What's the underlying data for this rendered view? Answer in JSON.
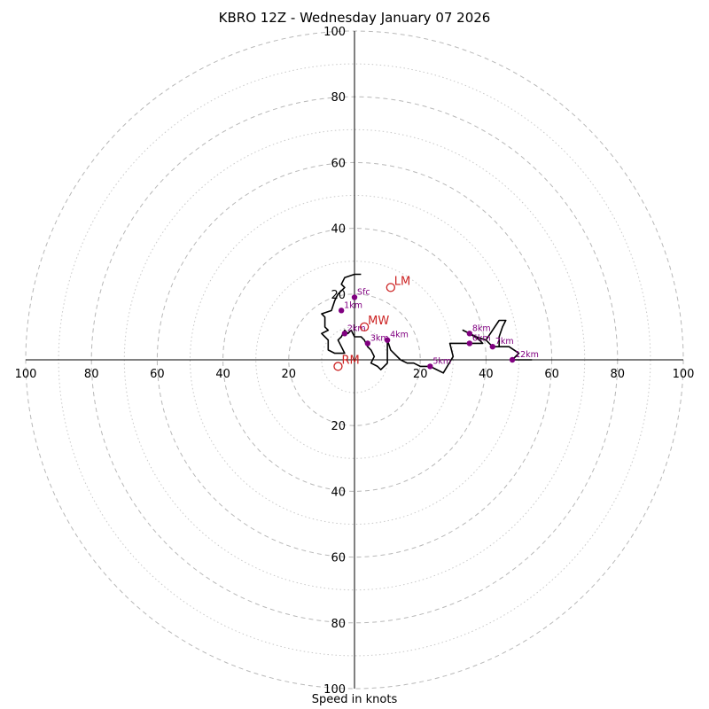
{
  "chart_data": {
    "type": "hodograph",
    "title": "KBRO 12Z - Wednesday January 07 2026",
    "xlabel": "Speed in knots",
    "range_max": 100,
    "ring_step_major": 20,
    "ring_step_minor": 10,
    "tick_labels": [
      "100",
      "80",
      "60",
      "40",
      "20",
      "20",
      "40",
      "60",
      "80",
      "100"
    ],
    "y_tick_labels_top": [
      "100",
      "80",
      "60",
      "40",
      "20"
    ],
    "y_tick_labels_bottom": [
      "20",
      "40",
      "60",
      "80",
      "100"
    ],
    "wind_trace_uv": [
      [
        2,
        26
      ],
      [
        0,
        26
      ],
      [
        -3,
        25
      ],
      [
        -4,
        23
      ],
      [
        -3,
        22
      ],
      [
        -5,
        20
      ],
      [
        -6,
        18
      ],
      [
        -7,
        15
      ],
      [
        -10,
        14
      ],
      [
        -9,
        13
      ],
      [
        -9,
        10
      ],
      [
        -8,
        9
      ],
      [
        -10,
        8
      ],
      [
        -9,
        7
      ],
      [
        -8,
        6
      ],
      [
        -8,
        3
      ],
      [
        -6,
        2
      ],
      [
        -3,
        2
      ],
      [
        -4,
        4
      ],
      [
        -5,
        6
      ],
      [
        -4,
        7
      ],
      [
        -3,
        9
      ],
      [
        -2,
        8
      ],
      [
        -1,
        9
      ],
      [
        0,
        7
      ],
      [
        2,
        7
      ],
      [
        3,
        6
      ],
      [
        4,
        4
      ],
      [
        5,
        3
      ],
      [
        6,
        1
      ],
      [
        5,
        -1
      ],
      [
        7,
        -2
      ],
      [
        8,
        -3
      ],
      [
        9,
        -2
      ],
      [
        10,
        -1
      ],
      [
        10,
        4
      ],
      [
        10,
        6
      ],
      [
        11,
        3
      ],
      [
        13,
        1
      ],
      [
        14,
        0
      ],
      [
        16,
        -1
      ],
      [
        18,
        -1
      ],
      [
        20,
        -2
      ],
      [
        23,
        -2
      ],
      [
        25,
        -3
      ],
      [
        27,
        -4
      ],
      [
        30,
        1
      ],
      [
        29,
        5
      ],
      [
        34,
        5
      ],
      [
        39,
        5
      ],
      [
        38,
        6
      ],
      [
        35,
        8
      ],
      [
        33,
        9
      ],
      [
        37,
        7
      ],
      [
        40,
        6
      ],
      [
        42,
        4
      ],
      [
        44,
        4
      ],
      [
        44,
        7
      ],
      [
        45,
        10
      ],
      [
        46,
        12
      ],
      [
        44,
        12
      ],
      [
        42,
        9
      ],
      [
        40,
        6
      ],
      [
        42,
        4
      ],
      [
        47,
        4
      ],
      [
        50,
        2
      ],
      [
        48,
        0
      ],
      [
        54,
        0
      ]
    ],
    "height_markers": [
      {
        "label": "Sfc",
        "u": 0,
        "v": 19
      },
      {
        "label": "1km",
        "u": -4,
        "v": 15
      },
      {
        "label": "2km",
        "u": -3,
        "v": 8
      },
      {
        "label": "3km",
        "u": 4,
        "v": 5
      },
      {
        "label": "4km",
        "u": 10,
        "v": 6
      },
      {
        "label": "5km",
        "u": 23,
        "v": -2
      },
      {
        "label": "6km",
        "u": 35,
        "v": 5
      },
      {
        "label": "7km",
        "u": 42,
        "v": 4
      },
      {
        "label": "8km",
        "u": 35,
        "v": 8
      },
      {
        "label": "12km",
        "u": 48,
        "v": 0
      }
    ],
    "motion_points": [
      {
        "label": "LM",
        "u": 11,
        "v": 22
      },
      {
        "label": "MW",
        "u": 3,
        "v": 10
      },
      {
        "label": "RM",
        "u": -5,
        "v": -2
      }
    ],
    "colors": {
      "trace": "#000000",
      "marker": "#800080",
      "motion": "#cc2222",
      "ring_major": "#b8b8b8",
      "ring_minor": "#c8c8c8"
    }
  }
}
